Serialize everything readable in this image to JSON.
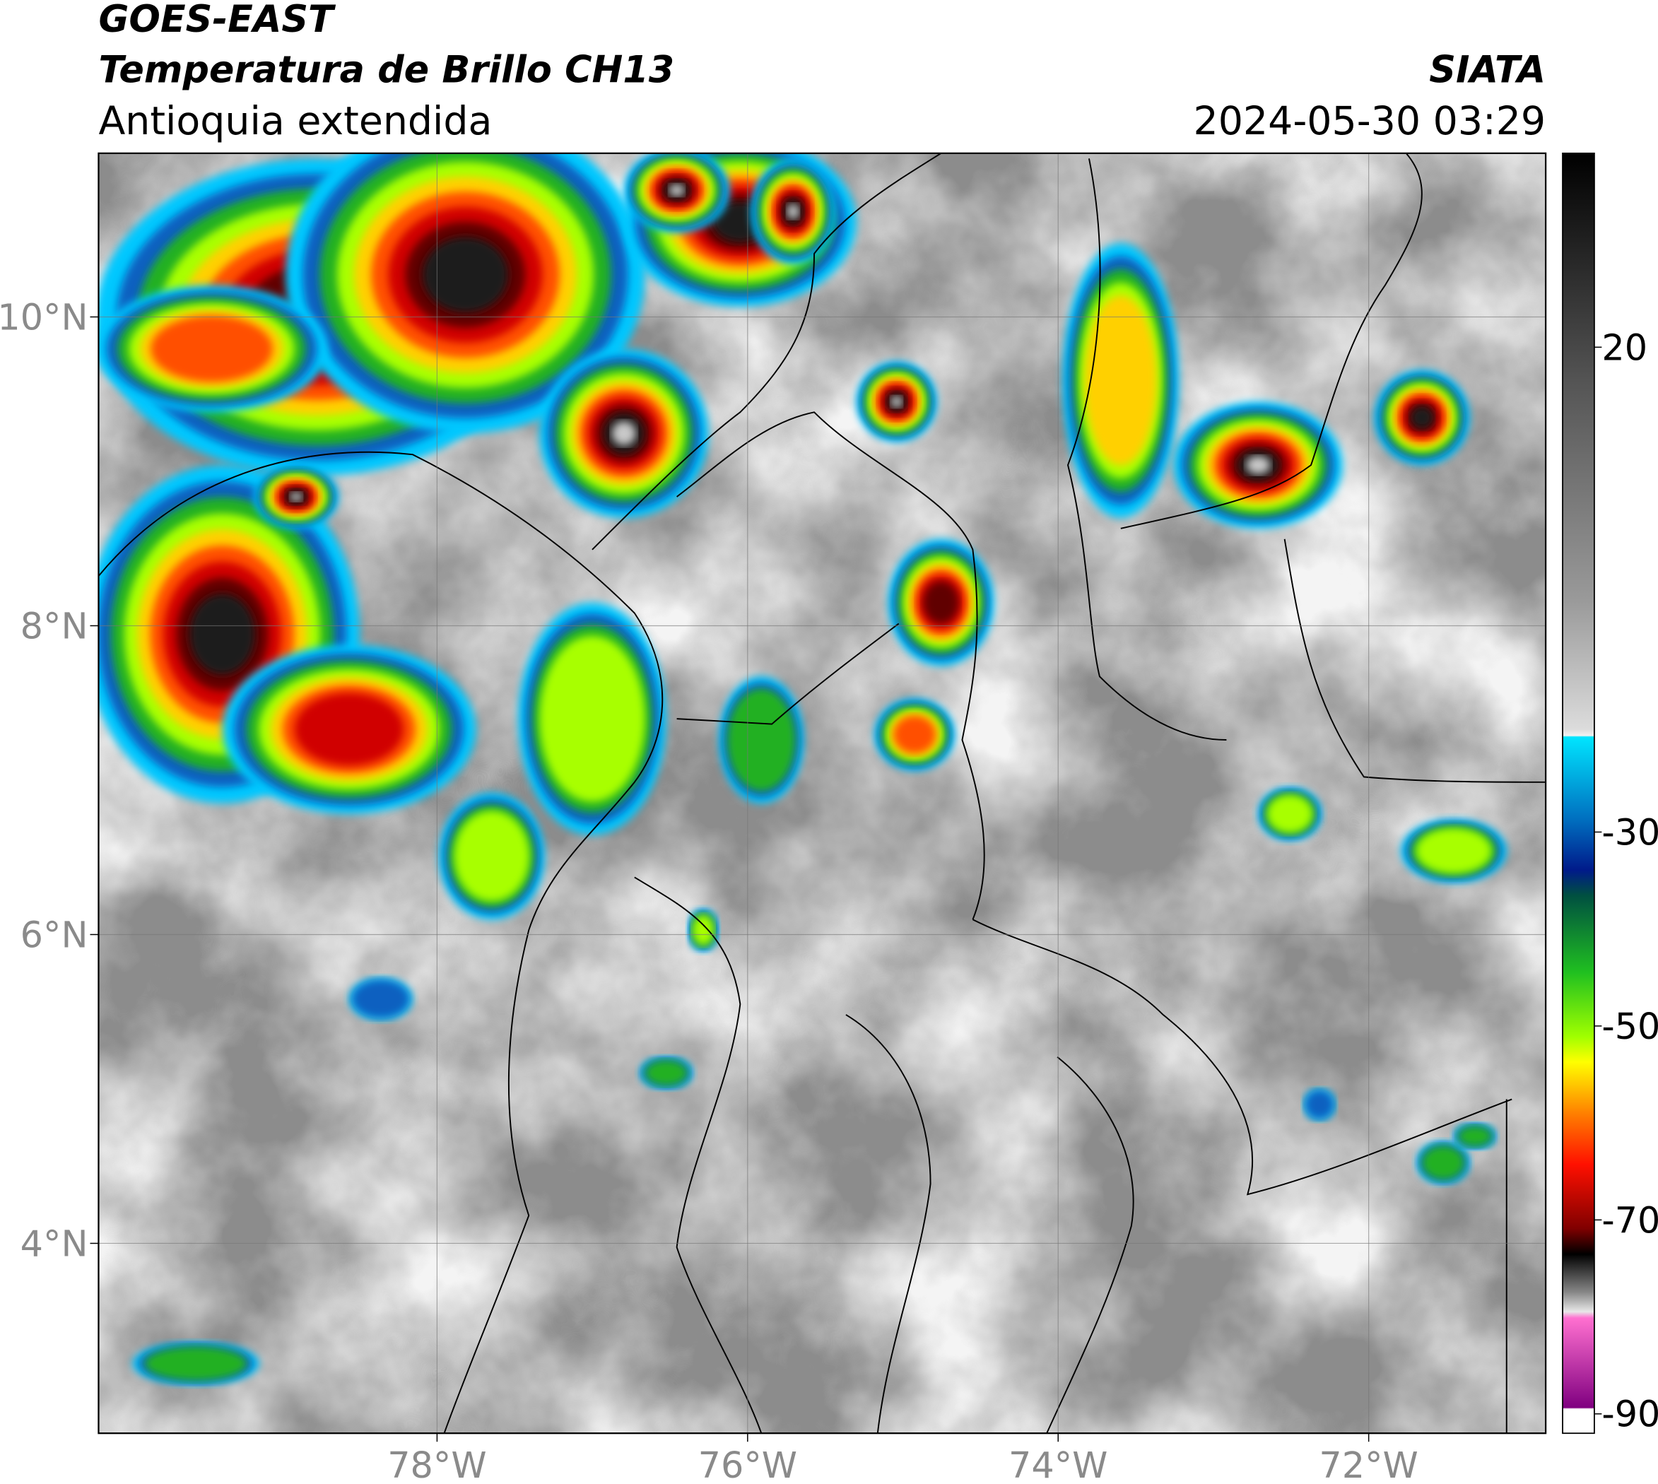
{
  "header": {
    "title": "GOES-EAST",
    "product": "Temperatura de Brillo CH13",
    "region": "Antioquia extendida",
    "source": "SIATA",
    "datetime": "2024-05-30 03:29"
  },
  "map": {
    "xlim": [
      -80.18,
      -70.86
    ],
    "ylim": [
      2.77,
      11.06
    ],
    "xticks": [
      {
        "value": -78,
        "label": "78°W"
      },
      {
        "value": -76,
        "label": "76°W"
      },
      {
        "value": -74,
        "label": "74°W"
      },
      {
        "value": -72,
        "label": "72°W"
      }
    ],
    "yticks": [
      {
        "value": 10,
        "label": "10°N"
      },
      {
        "value": 8,
        "label": "8°N"
      },
      {
        "value": 6,
        "label": "6°N"
      },
      {
        "value": 4,
        "label": "4°N"
      }
    ],
    "grid": true
  },
  "colorbar": {
    "lim": [
      -92,
      40
    ],
    "ticks": [
      20,
      -30,
      -50,
      -70,
      -90
    ]
  }
}
